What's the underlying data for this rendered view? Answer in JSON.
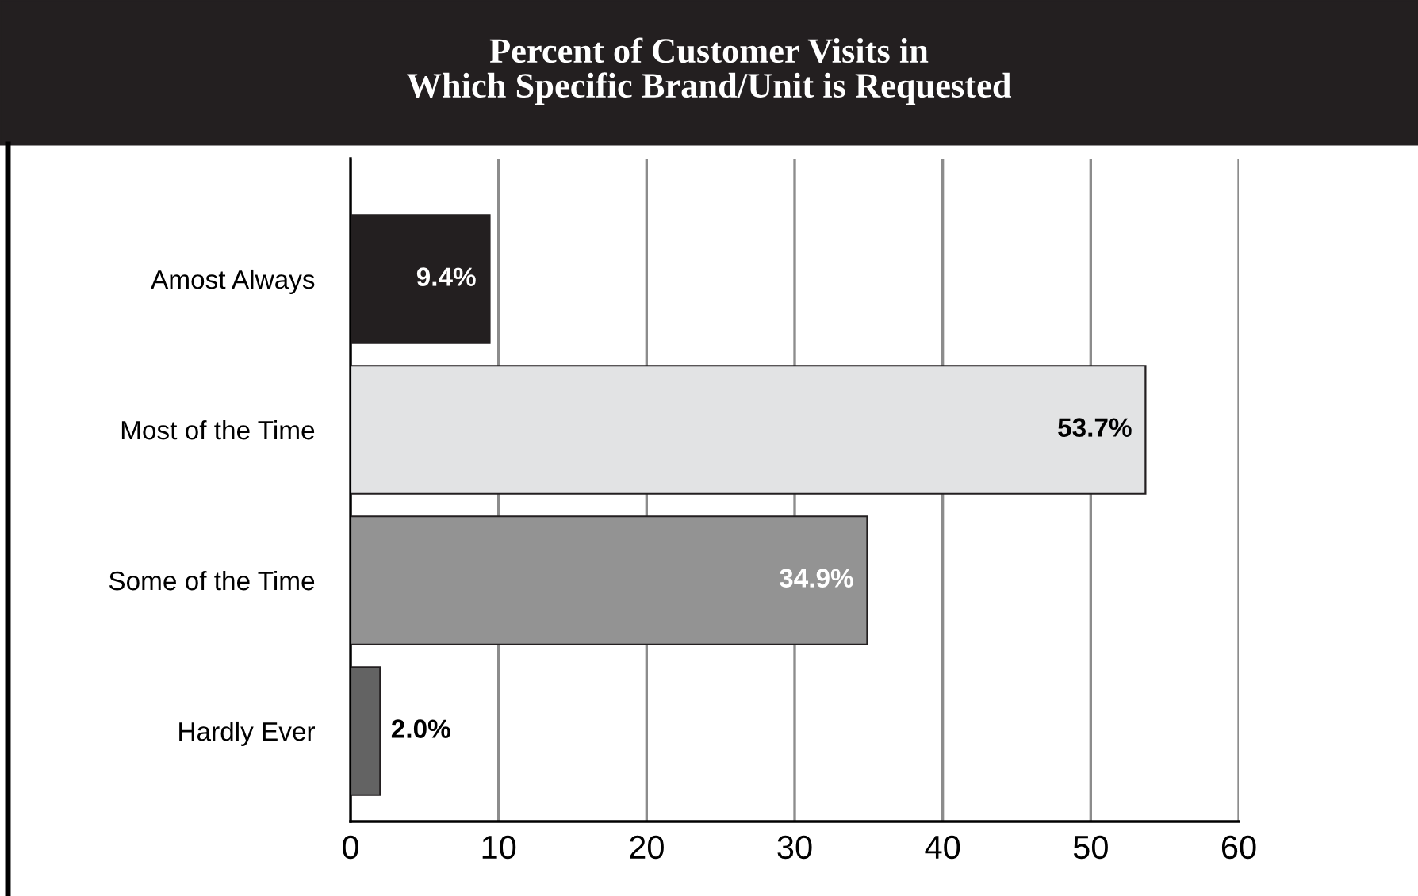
{
  "chart_data": {
    "type": "bar",
    "orientation": "horizontal",
    "title": "Percent of Customer Visits in\nWhich Specific Brand/Unit is Requested",
    "categories": [
      "Amost Always",
      "Most of the Time",
      "Some of the Time",
      "Hardly Ever"
    ],
    "values": [
      9.4,
      53.7,
      34.9,
      2.0
    ],
    "colors": [
      "#231f20",
      "#e2e3e4",
      "#939393",
      "#636363"
    ],
    "value_labels": [
      "9.4%",
      "53.7%",
      "34.9%",
      "2.0%"
    ],
    "xlim": [
      0,
      60
    ],
    "xticks": [
      0,
      10,
      20,
      30,
      40,
      50,
      60
    ],
    "grid": "x",
    "legend": false
  }
}
